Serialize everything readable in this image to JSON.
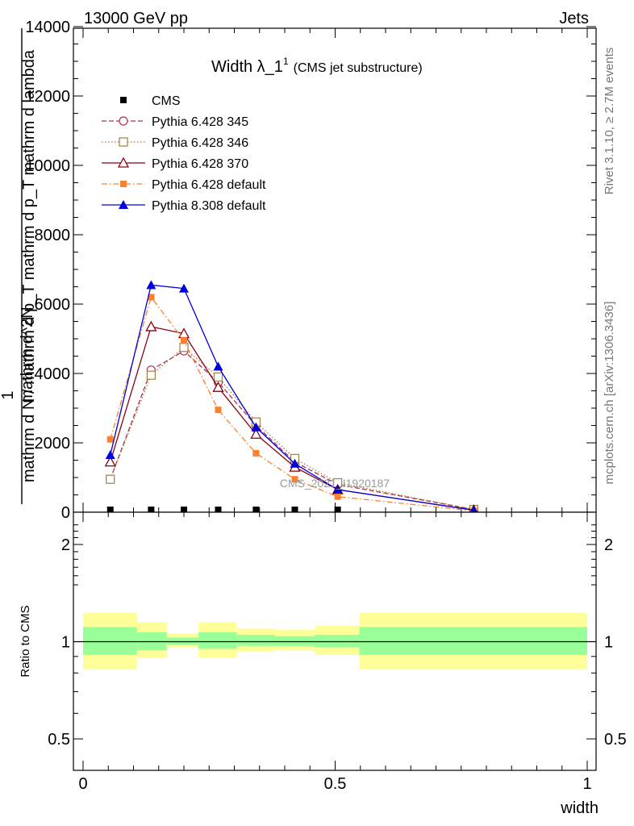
{
  "header": {
    "left": "13000 GeV pp",
    "right": "Jets"
  },
  "title": {
    "main": "Width λ_1",
    "sup": "1",
    "sub": "(CMS jet substructure)"
  },
  "side_labels": {
    "rivet": "Rivet 3.1.10, ≥ 2.7M events",
    "mcplots": "mcplots.cern.ch [arXiv:1306.3436]"
  },
  "watermark": "CMS_2021_I1920187",
  "colors": {
    "CMS": "#000000",
    "Pythia 6.428 345": "#b03050",
    "Pythia 6.428 346": "#a08040",
    "Pythia 6.428 370": "#8b0010",
    "Pythia 6.428 default": "#ff7f2a",
    "Pythia 8.308 default": "#0000dd",
    "band_inner": "#99ff99",
    "band_outer": "#ffff99"
  },
  "chart_data": [
    {
      "type": "line",
      "title": "Width λ_1^1 (CMS jet substructure)",
      "ylabel_top": "1",
      "ylabel_num": "mathrm d^2N",
      "ylabel_den": "mathrm d N / mathrm d p_T mathrm d p_T mathrm d lambda",
      "xlabel": "width",
      "xlim": [
        0,
        1
      ],
      "ylim": [
        0,
        14000
      ],
      "y_ticks": [
        0,
        2000,
        4000,
        6000,
        8000,
        10000,
        12000,
        14000
      ],
      "y_tick_labels": [
        "0",
        "2000",
        "4000",
        "6000",
        "8000",
        "10000",
        "12000",
        "14000"
      ],
      "legend_position": "top-left",
      "series": [
        {
          "name": "CMS",
          "marker": "filled-square",
          "dash": "none",
          "x": [
            0.054,
            0.135,
            0.2,
            0.268,
            0.343,
            0.42,
            0.505,
            0.775
          ],
          "y": [
            0,
            0,
            0,
            0,
            0,
            0,
            0,
            0
          ]
        },
        {
          "name": "Pythia 6.428 345",
          "marker": "open-circle",
          "dash": "6,3",
          "x": [
            0.054,
            0.135,
            0.2,
            0.268,
            0.343,
            0.42,
            0.505,
            0.775
          ],
          "y": [
            950,
            4100,
            4650,
            3750,
            2500,
            1450,
            800,
            80
          ]
        },
        {
          "name": "Pythia 6.428 346",
          "marker": "open-square",
          "dash": "1.5,2.5",
          "x": [
            0.054,
            0.135,
            0.2,
            0.268,
            0.343,
            0.42,
            0.505,
            0.775
          ],
          "y": [
            950,
            3950,
            4750,
            3900,
            2600,
            1550,
            850,
            80
          ]
        },
        {
          "name": "Pythia 6.428 370",
          "marker": "open-triangle",
          "dash": "none",
          "x": [
            0.054,
            0.135,
            0.2,
            0.268,
            0.343,
            0.42,
            0.505,
            0.775
          ],
          "y": [
            1450,
            5350,
            5150,
            3600,
            2250,
            1300,
            650,
            60
          ]
        },
        {
          "name": "Pythia 6.428 default",
          "marker": "filled-square",
          "dash": "7,3,1.5,3",
          "x": [
            0.054,
            0.135,
            0.2,
            0.268,
            0.343,
            0.42,
            0.505,
            0.775
          ],
          "y": [
            2100,
            6200,
            4950,
            2950,
            1700,
            950,
            450,
            40
          ]
        },
        {
          "name": "Pythia 8.308 default",
          "marker": "filled-triangle",
          "dash": "none",
          "x": [
            0.054,
            0.135,
            0.2,
            0.268,
            0.343,
            0.42,
            0.505,
            0.775
          ],
          "y": [
            1650,
            6550,
            6450,
            4200,
            2450,
            1400,
            650,
            60
          ]
        }
      ]
    },
    {
      "type": "area",
      "ylabel": "Ratio to CMS",
      "xlabel": "width",
      "xlim": [
        0,
        1
      ],
      "ylim": [
        0.4,
        2.4
      ],
      "y_scale": "log",
      "y_ticks": [
        0.5,
        1,
        2
      ],
      "y_tick_labels": [
        "0.5",
        "1",
        "2"
      ],
      "x_ticks": [
        0,
        0.5,
        1
      ],
      "x_tick_labels": [
        "0",
        "0.5",
        "1"
      ],
      "reference_line": 1,
      "bins": [
        {
          "lo": 0.0,
          "hi": 0.107,
          "inner": [
            0.91,
            1.11
          ],
          "outer": [
            0.82,
            1.23
          ]
        },
        {
          "lo": 0.107,
          "hi": 0.166,
          "inner": [
            0.94,
            1.07
          ],
          "outer": [
            0.89,
            1.15
          ]
        },
        {
          "lo": 0.166,
          "hi": 0.229,
          "inner": [
            0.98,
            1.03
          ],
          "outer": [
            0.96,
            1.06
          ]
        },
        {
          "lo": 0.229,
          "hi": 0.305,
          "inner": [
            0.95,
            1.07
          ],
          "outer": [
            0.89,
            1.15
          ]
        },
        {
          "lo": 0.305,
          "hi": 0.38,
          "inner": [
            0.97,
            1.05
          ],
          "outer": [
            0.93,
            1.1
          ]
        },
        {
          "lo": 0.38,
          "hi": 0.46,
          "inner": [
            0.97,
            1.04
          ],
          "outer": [
            0.94,
            1.09
          ]
        },
        {
          "lo": 0.46,
          "hi": 0.548,
          "inner": [
            0.96,
            1.05
          ],
          "outer": [
            0.91,
            1.12
          ]
        },
        {
          "lo": 0.548,
          "hi": 1.0,
          "inner": [
            0.91,
            1.11
          ],
          "outer": [
            0.82,
            1.23
          ]
        }
      ]
    }
  ]
}
